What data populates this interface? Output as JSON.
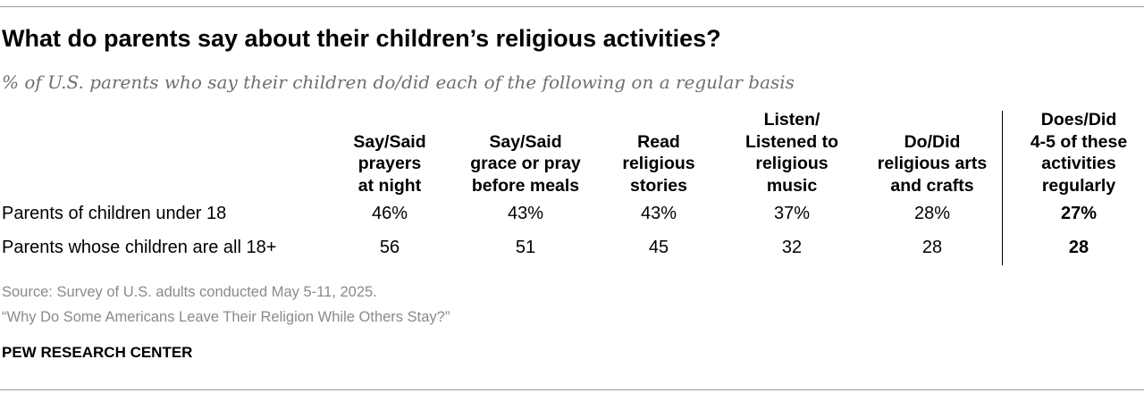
{
  "chart_data": {
    "type": "table",
    "title": "What do parents say about their children’s religious activities?",
    "subtitle": "% of U.S. parents who say their children do/did each of the following on a regular basis",
    "columns": [
      "Say/Said\nprayers\nat night",
      "Say/Said\ngrace or pray\nbefore meals",
      "Read\nreligious\nstories",
      "Listen/\nListened to\nreligious\nmusic",
      "Do/Did\nreligious arts\nand crafts",
      "Does/Did\n4-5 of these\nactivities\nregularly"
    ],
    "rows": [
      {
        "label": "Parents of children under 18",
        "values": [
          "46%",
          "43%",
          "43%",
          "37%",
          "28%",
          "27%"
        ]
      },
      {
        "label": "Parents whose children are all 18+",
        "values": [
          "56",
          "51",
          "45",
          "32",
          "28",
          "28"
        ]
      }
    ]
  },
  "footer": {
    "source": "Source: Survey of U.S. adults conducted May 5-11, 2025.",
    "report": "“Why Do Some Americans Leave Their Religion While Others Stay?”",
    "brand": "PEW RESEARCH CENTER"
  }
}
